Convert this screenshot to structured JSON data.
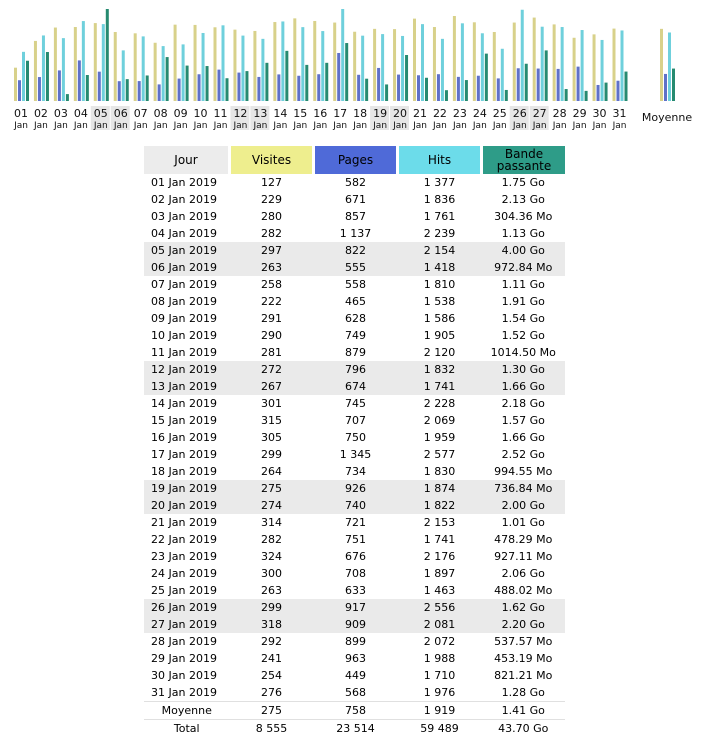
{
  "chart_data": {
    "type": "bar",
    "title": "",
    "xlabel": "",
    "ylabel": "",
    "colors": {
      "visites": "#d8d18a",
      "pages": "#5f71c8",
      "hits": "#6fd0dc",
      "bande": "#268a70",
      "weekend_bg": "#e6e6e6"
    },
    "days": [
      {
        "d": "01",
        "m": "Jan",
        "we": false,
        "v": 127,
        "p": 582,
        "h": 1377,
        "bw": 1.75
      },
      {
        "d": "02",
        "m": "Jan",
        "we": false,
        "v": 229,
        "p": 671,
        "h": 1836,
        "bw": 2.13
      },
      {
        "d": "03",
        "m": "Jan",
        "we": false,
        "v": 280,
        "p": 857,
        "h": 1761,
        "bw": 0.3
      },
      {
        "d": "04",
        "m": "Jan",
        "we": false,
        "v": 282,
        "p": 1137,
        "h": 2239,
        "bw": 1.13
      },
      {
        "d": "05",
        "m": "Jan",
        "we": true,
        "v": 297,
        "p": 822,
        "h": 2154,
        "bw": 4.0
      },
      {
        "d": "06",
        "m": "Jan",
        "we": true,
        "v": 263,
        "p": 555,
        "h": 1418,
        "bw": 0.95
      },
      {
        "d": "07",
        "m": "Jan",
        "we": false,
        "v": 258,
        "p": 558,
        "h": 1810,
        "bw": 1.11
      },
      {
        "d": "08",
        "m": "Jan",
        "we": false,
        "v": 222,
        "p": 465,
        "h": 1538,
        "bw": 1.91
      },
      {
        "d": "09",
        "m": "Jan",
        "we": false,
        "v": 291,
        "p": 628,
        "h": 1586,
        "bw": 1.54
      },
      {
        "d": "10",
        "m": "Jan",
        "we": false,
        "v": 290,
        "p": 749,
        "h": 1905,
        "bw": 1.52
      },
      {
        "d": "11",
        "m": "Jan",
        "we": false,
        "v": 281,
        "p": 879,
        "h": 2120,
        "bw": 0.99
      },
      {
        "d": "12",
        "m": "Jan",
        "we": true,
        "v": 272,
        "p": 796,
        "h": 1832,
        "bw": 1.3
      },
      {
        "d": "13",
        "m": "Jan",
        "we": true,
        "v": 267,
        "p": 674,
        "h": 1741,
        "bw": 1.66
      },
      {
        "d": "14",
        "m": "Jan",
        "we": false,
        "v": 301,
        "p": 745,
        "h": 2228,
        "bw": 2.18
      },
      {
        "d": "15",
        "m": "Jan",
        "we": false,
        "v": 315,
        "p": 707,
        "h": 2069,
        "bw": 1.57
      },
      {
        "d": "16",
        "m": "Jan",
        "we": false,
        "v": 305,
        "p": 750,
        "h": 1959,
        "bw": 1.66
      },
      {
        "d": "17",
        "m": "Jan",
        "we": false,
        "v": 299,
        "p": 1345,
        "h": 2577,
        "bw": 2.52
      },
      {
        "d": "18",
        "m": "Jan",
        "we": false,
        "v": 264,
        "p": 734,
        "h": 1830,
        "bw": 0.97
      },
      {
        "d": "19",
        "m": "Jan",
        "we": true,
        "v": 275,
        "p": 926,
        "h": 1874,
        "bw": 0.72
      },
      {
        "d": "20",
        "m": "Jan",
        "we": true,
        "v": 274,
        "p": 740,
        "h": 1822,
        "bw": 2.0
      },
      {
        "d": "21",
        "m": "Jan",
        "we": false,
        "v": 314,
        "p": 721,
        "h": 2153,
        "bw": 1.01
      },
      {
        "d": "22",
        "m": "Jan",
        "we": false,
        "v": 282,
        "p": 751,
        "h": 1741,
        "bw": 0.47
      },
      {
        "d": "23",
        "m": "Jan",
        "we": false,
        "v": 324,
        "p": 676,
        "h": 2176,
        "bw": 0.91
      },
      {
        "d": "24",
        "m": "Jan",
        "we": false,
        "v": 300,
        "p": 708,
        "h": 1897,
        "bw": 2.06
      },
      {
        "d": "25",
        "m": "Jan",
        "we": false,
        "v": 263,
        "p": 633,
        "h": 1463,
        "bw": 0.48
      },
      {
        "d": "26",
        "m": "Jan",
        "we": true,
        "v": 299,
        "p": 917,
        "h": 2556,
        "bw": 1.62
      },
      {
        "d": "27",
        "m": "Jan",
        "we": true,
        "v": 318,
        "p": 909,
        "h": 2081,
        "bw": 2.2
      },
      {
        "d": "28",
        "m": "Jan",
        "we": false,
        "v": 292,
        "p": 899,
        "h": 2072,
        "bw": 0.52
      },
      {
        "d": "29",
        "m": "Jan",
        "we": false,
        "v": 241,
        "p": 963,
        "h": 1988,
        "bw": 0.44
      },
      {
        "d": "30",
        "m": "Jan",
        "we": false,
        "v": 254,
        "p": 449,
        "h": 1710,
        "bw": 0.8
      },
      {
        "d": "31",
        "m": "Jan",
        "we": false,
        "v": 276,
        "p": 568,
        "h": 1976,
        "bw": 1.28
      }
    ],
    "average": {
      "label": "Moyenne",
      "v": 275,
      "p": 758,
      "h": 1919,
      "bw": 1.41
    }
  },
  "table": {
    "headers": {
      "jour": "Jour",
      "visites": "Visites",
      "pages": "Pages",
      "hits": "Hits",
      "bande_l1": "Bande",
      "bande_l2": "passante"
    },
    "rows": [
      {
        "jour": "01 Jan 2019",
        "visites": "127",
        "pages": "582",
        "hits": "1 377",
        "bande": "1.75 Go",
        "we": false
      },
      {
        "jour": "02 Jan 2019",
        "visites": "229",
        "pages": "671",
        "hits": "1 836",
        "bande": "2.13 Go",
        "we": false
      },
      {
        "jour": "03 Jan 2019",
        "visites": "280",
        "pages": "857",
        "hits": "1 761",
        "bande": "304.36 Mo",
        "we": false
      },
      {
        "jour": "04 Jan 2019",
        "visites": "282",
        "pages": "1 137",
        "hits": "2 239",
        "bande": "1.13 Go",
        "we": false
      },
      {
        "jour": "05 Jan 2019",
        "visites": "297",
        "pages": "822",
        "hits": "2 154",
        "bande": "4.00 Go",
        "we": true
      },
      {
        "jour": "06 Jan 2019",
        "visites": "263",
        "pages": "555",
        "hits": "1 418",
        "bande": "972.84 Mo",
        "we": true
      },
      {
        "jour": "07 Jan 2019",
        "visites": "258",
        "pages": "558",
        "hits": "1 810",
        "bande": "1.11 Go",
        "we": false
      },
      {
        "jour": "08 Jan 2019",
        "visites": "222",
        "pages": "465",
        "hits": "1 538",
        "bande": "1.91 Go",
        "we": false
      },
      {
        "jour": "09 Jan 2019",
        "visites": "291",
        "pages": "628",
        "hits": "1 586",
        "bande": "1.54 Go",
        "we": false
      },
      {
        "jour": "10 Jan 2019",
        "visites": "290",
        "pages": "749",
        "hits": "1 905",
        "bande": "1.52 Go",
        "we": false
      },
      {
        "jour": "11 Jan 2019",
        "visites": "281",
        "pages": "879",
        "hits": "2 120",
        "bande": "1014.50 Mo",
        "we": false
      },
      {
        "jour": "12 Jan 2019",
        "visites": "272",
        "pages": "796",
        "hits": "1 832",
        "bande": "1.30 Go",
        "we": true
      },
      {
        "jour": "13 Jan 2019",
        "visites": "267",
        "pages": "674",
        "hits": "1 741",
        "bande": "1.66 Go",
        "we": true
      },
      {
        "jour": "14 Jan 2019",
        "visites": "301",
        "pages": "745",
        "hits": "2 228",
        "bande": "2.18 Go",
        "we": false
      },
      {
        "jour": "15 Jan 2019",
        "visites": "315",
        "pages": "707",
        "hits": "2 069",
        "bande": "1.57 Go",
        "we": false
      },
      {
        "jour": "16 Jan 2019",
        "visites": "305",
        "pages": "750",
        "hits": "1 959",
        "bande": "1.66 Go",
        "we": false
      },
      {
        "jour": "17 Jan 2019",
        "visites": "299",
        "pages": "1 345",
        "hits": "2 577",
        "bande": "2.52 Go",
        "we": false
      },
      {
        "jour": "18 Jan 2019",
        "visites": "264",
        "pages": "734",
        "hits": "1 830",
        "bande": "994.55 Mo",
        "we": false
      },
      {
        "jour": "19 Jan 2019",
        "visites": "275",
        "pages": "926",
        "hits": "1 874",
        "bande": "736.84 Mo",
        "we": true
      },
      {
        "jour": "20 Jan 2019",
        "visites": "274",
        "pages": "740",
        "hits": "1 822",
        "bande": "2.00 Go",
        "we": true
      },
      {
        "jour": "21 Jan 2019",
        "visites": "314",
        "pages": "721",
        "hits": "2 153",
        "bande": "1.01 Go",
        "we": false
      },
      {
        "jour": "22 Jan 2019",
        "visites": "282",
        "pages": "751",
        "hits": "1 741",
        "bande": "478.29 Mo",
        "we": false
      },
      {
        "jour": "23 Jan 2019",
        "visites": "324",
        "pages": "676",
        "hits": "2 176",
        "bande": "927.11 Mo",
        "we": false
      },
      {
        "jour": "24 Jan 2019",
        "visites": "300",
        "pages": "708",
        "hits": "1 897",
        "bande": "2.06 Go",
        "we": false
      },
      {
        "jour": "25 Jan 2019",
        "visites": "263",
        "pages": "633",
        "hits": "1 463",
        "bande": "488.02 Mo",
        "we": false
      },
      {
        "jour": "26 Jan 2019",
        "visites": "299",
        "pages": "917",
        "hits": "2 556",
        "bande": "1.62 Go",
        "we": true
      },
      {
        "jour": "27 Jan 2019",
        "visites": "318",
        "pages": "909",
        "hits": "2 081",
        "bande": "2.20 Go",
        "we": true
      },
      {
        "jour": "28 Jan 2019",
        "visites": "292",
        "pages": "899",
        "hits": "2 072",
        "bande": "537.57 Mo",
        "we": false
      },
      {
        "jour": "29 Jan 2019",
        "visites": "241",
        "pages": "963",
        "hits": "1 988",
        "bande": "453.19 Mo",
        "we": false
      },
      {
        "jour": "30 Jan 2019",
        "visites": "254",
        "pages": "449",
        "hits": "1 710",
        "bande": "821.21 Mo",
        "we": false
      },
      {
        "jour": "31 Jan 2019",
        "visites": "276",
        "pages": "568",
        "hits": "1 976",
        "bande": "1.28 Go",
        "we": false
      }
    ],
    "average": {
      "label": "Moyenne",
      "visites": "275",
      "pages": "758",
      "hits": "1 919",
      "bande": "1.41 Go"
    },
    "total": {
      "label": "Total",
      "visites": "8 555",
      "pages": "23 514",
      "hits": "59 489",
      "bande": "43.70 Go"
    }
  }
}
